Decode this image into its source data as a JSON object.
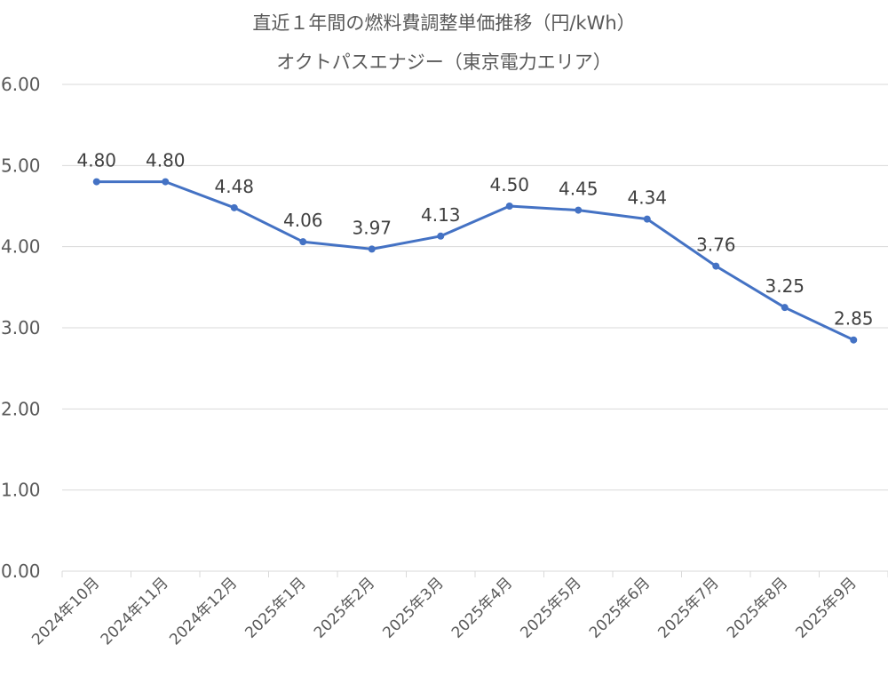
{
  "chart_data": {
    "type": "line",
    "title": "直近１年間の燃料費調整単価推移（円/kWh）",
    "subtitle": "オクトパスエナジー（東京電力エリア）",
    "categories": [
      "2024年10月",
      "2024年11月",
      "2024年12月",
      "2025年1月",
      "2025年2月",
      "2025年3月",
      "2025年4月",
      "2025年5月",
      "2025年6月",
      "2025年7月",
      "2025年8月",
      "2025年9月"
    ],
    "values": [
      4.8,
      4.8,
      4.48,
      4.06,
      3.97,
      4.13,
      4.5,
      4.45,
      4.34,
      3.76,
      3.25,
      2.85
    ],
    "data_labels": [
      "4.80",
      "4.80",
      "4.48",
      "4.06",
      "3.97",
      "4.13",
      "4.50",
      "4.45",
      "4.34",
      "3.76",
      "3.25",
      "2.85"
    ],
    "yticks": [
      "0.00",
      "1.00",
      "2.00",
      "3.00",
      "4.00",
      "5.00",
      "6.00"
    ],
    "ylim": [
      0,
      6
    ],
    "xlabel": "",
    "ylabel": "",
    "grid": true,
    "legend": "none",
    "line_color": "#4472C4",
    "grid_color": "#D9D9D9"
  }
}
